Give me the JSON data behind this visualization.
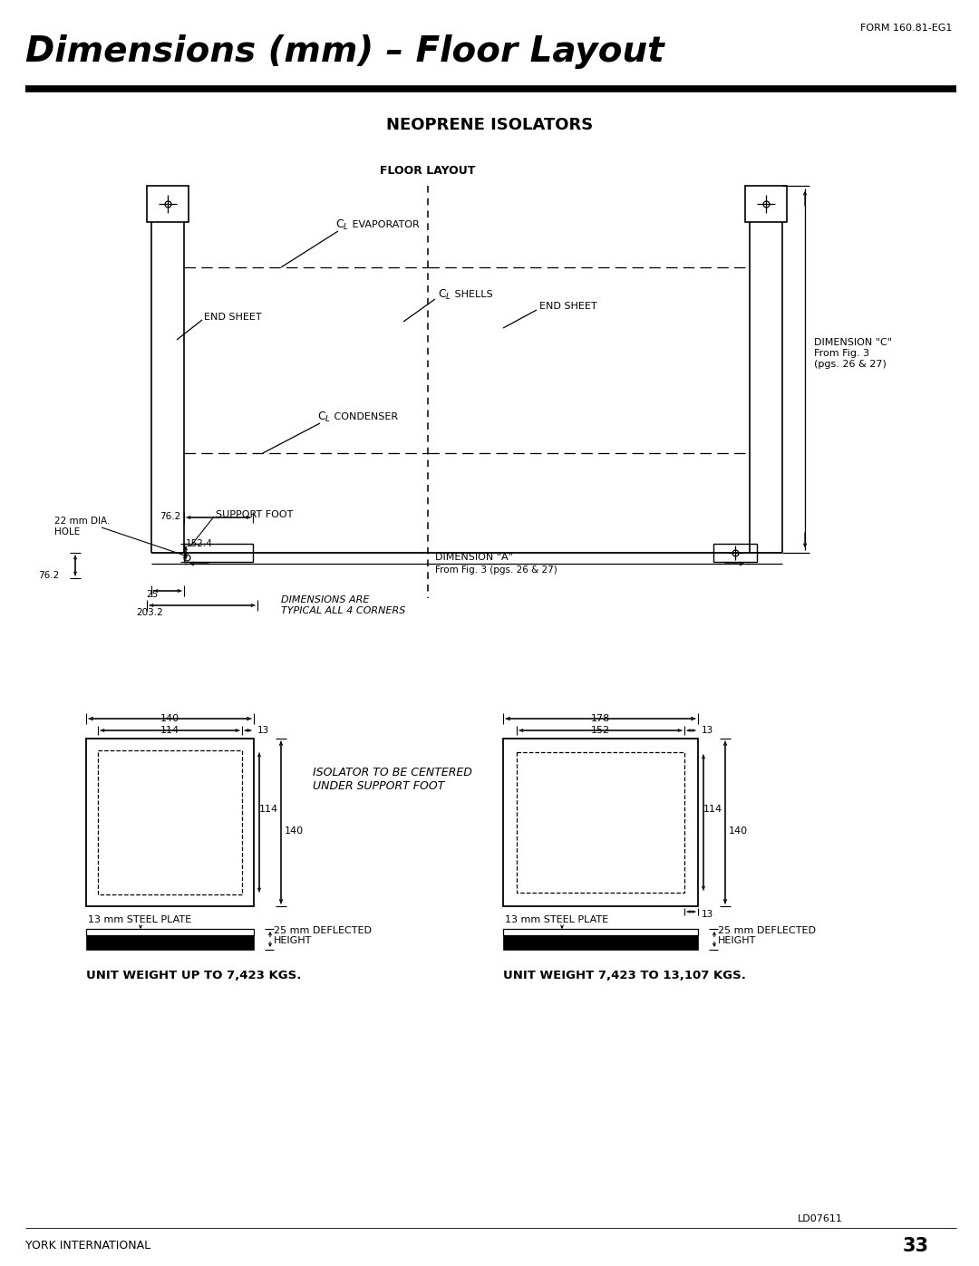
{
  "title": "Dimensions (mm) – Floor Layout",
  "form_number": "FORM 160.81-EG1",
  "subtitle": "NEOPRENE ISOLATORS",
  "floor_layout_label": "FLOOR LAYOUT",
  "bg_color": "#ffffff",
  "line_color": "#000000",
  "page_number": "33",
  "company": "YORK INTERNATIONAL",
  "drawing_id": "LD07611"
}
